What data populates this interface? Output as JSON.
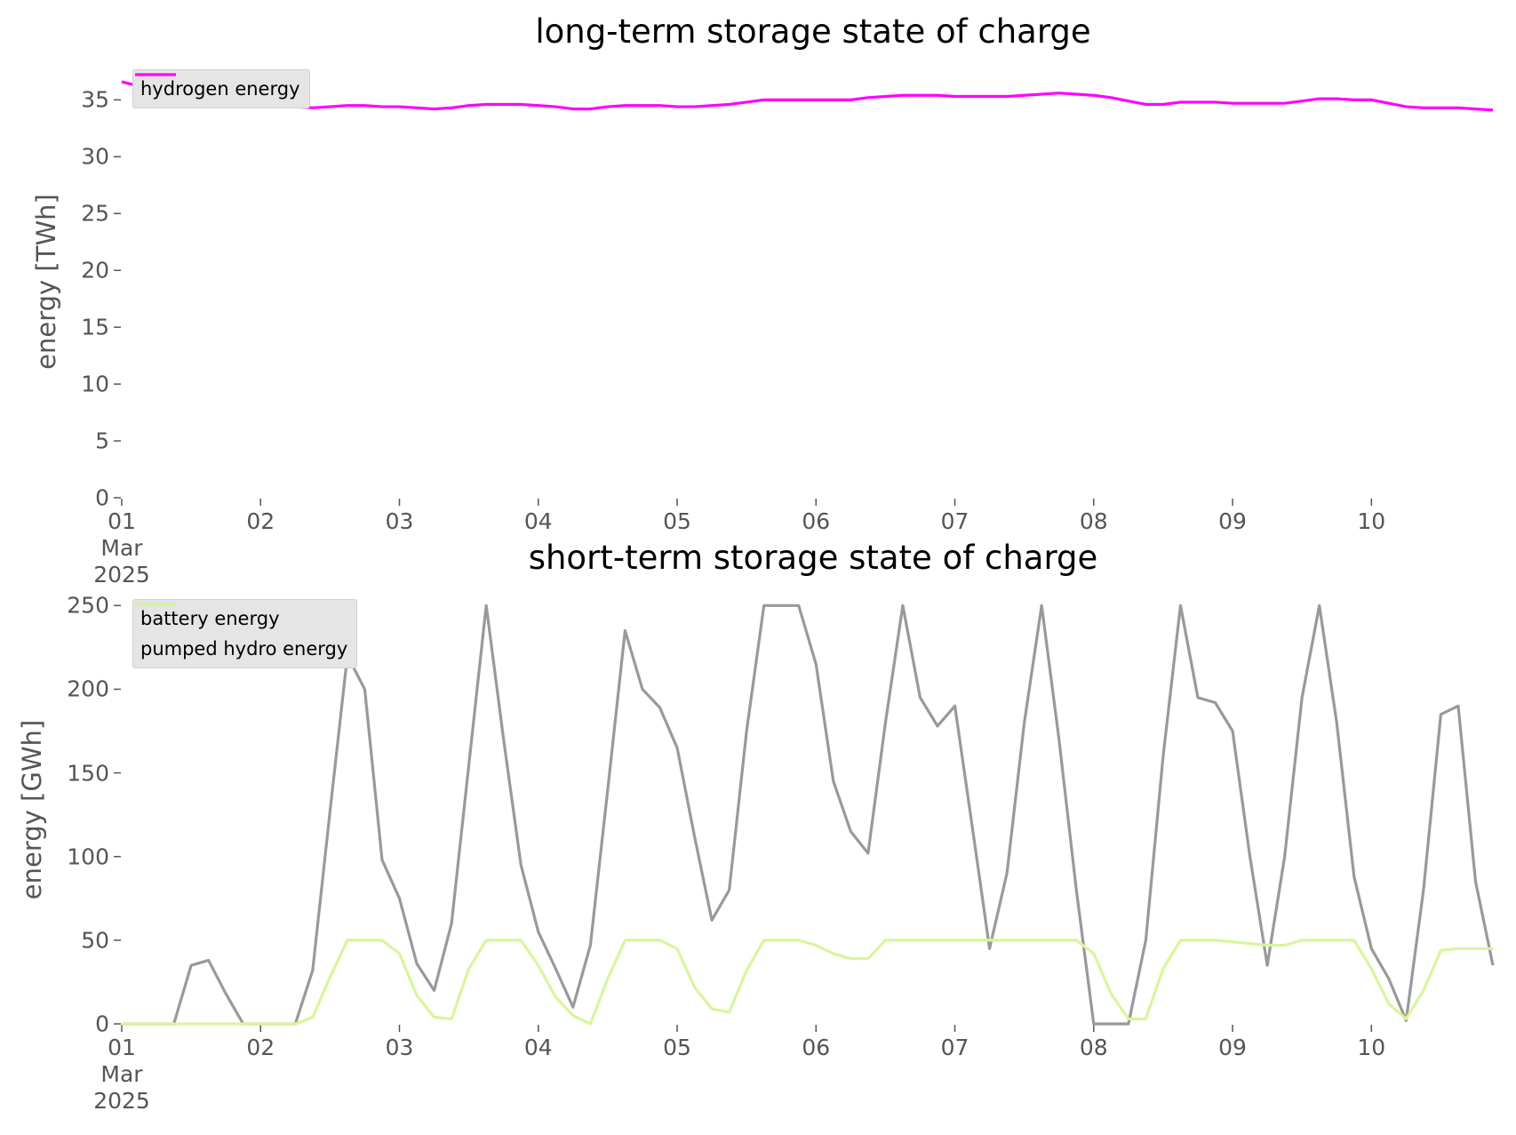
{
  "chart_data": [
    {
      "type": "line",
      "title": "long-term storage state of charge",
      "ylabel": "energy [TWh]",
      "legend": "upper left",
      "x": [
        1,
        1.125,
        1.25,
        1.375,
        1.5,
        1.625,
        1.75,
        1.875,
        2,
        2.125,
        2.25,
        2.375,
        2.5,
        2.625,
        2.75,
        2.875,
        3,
        3.125,
        3.25,
        3.375,
        3.5,
        3.625,
        3.75,
        3.875,
        4,
        4.125,
        4.25,
        4.375,
        4.5,
        4.625,
        4.75,
        4.875,
        5,
        5.125,
        5.25,
        5.375,
        5.5,
        5.625,
        5.75,
        5.875,
        6,
        6.125,
        6.25,
        6.375,
        6.5,
        6.625,
        6.75,
        6.875,
        7,
        7.125,
        7.25,
        7.375,
        7.5,
        7.625,
        7.75,
        7.875,
        8,
        8.125,
        8.25,
        8.375,
        8.5,
        8.625,
        8.75,
        8.875,
        9,
        9.125,
        9.25,
        9.375,
        9.5,
        9.625,
        9.75,
        9.875,
        10,
        10.125,
        10.25,
        10.375,
        10.5,
        10.625,
        10.75,
        10.875
      ],
      "xlim": [
        1,
        10.958
      ],
      "xticks": [
        {
          "value": 1,
          "label": "01\nMar\n2025"
        },
        {
          "value": 2,
          "label": "02"
        },
        {
          "value": 3,
          "label": "03"
        },
        {
          "value": 4,
          "label": "04"
        },
        {
          "value": 5,
          "label": "05"
        },
        {
          "value": 6,
          "label": "06"
        },
        {
          "value": 7,
          "label": "07"
        },
        {
          "value": 8,
          "label": "08"
        },
        {
          "value": 9,
          "label": "09"
        },
        {
          "value": 10,
          "label": "10"
        }
      ],
      "ylim": [
        0,
        38
      ],
      "yticks": [
        0,
        5,
        10,
        15,
        20,
        25,
        30,
        35
      ],
      "series": [
        {
          "name": "hydrogen energy",
          "color": "#ff00ff",
          "values": [
            36.6,
            36.2,
            35.8,
            35.6,
            35.5,
            35.4,
            35.2,
            35.0,
            34.8,
            34.6,
            34.4,
            34.3,
            34.4,
            34.5,
            34.5,
            34.4,
            34.4,
            34.3,
            34.2,
            34.3,
            34.5,
            34.6,
            34.6,
            34.6,
            34.5,
            34.4,
            34.2,
            34.2,
            34.4,
            34.5,
            34.5,
            34.5,
            34.4,
            34.4,
            34.5,
            34.6,
            34.8,
            35.0,
            35.0,
            35.0,
            35.0,
            35.0,
            35.0,
            35.2,
            35.3,
            35.4,
            35.4,
            35.4,
            35.3,
            35.3,
            35.3,
            35.3,
            35.4,
            35.5,
            35.6,
            35.5,
            35.4,
            35.2,
            34.9,
            34.6,
            34.6,
            34.8,
            34.8,
            34.8,
            34.7,
            34.7,
            34.7,
            34.7,
            34.9,
            35.1,
            35.1,
            35.0,
            35.0,
            34.7,
            34.4,
            34.3,
            34.3,
            34.3,
            34.2,
            34.1
          ]
        }
      ]
    },
    {
      "type": "line",
      "title": "short-term storage state of charge",
      "ylabel": "energy [GWh]",
      "legend": "upper left",
      "x": [
        1,
        1.125,
        1.25,
        1.375,
        1.5,
        1.625,
        1.75,
        1.875,
        2,
        2.125,
        2.25,
        2.375,
        2.5,
        2.625,
        2.75,
        2.875,
        3,
        3.125,
        3.25,
        3.375,
        3.5,
        3.625,
        3.75,
        3.875,
        4,
        4.125,
        4.25,
        4.375,
        4.5,
        4.625,
        4.75,
        4.875,
        5,
        5.125,
        5.25,
        5.375,
        5.5,
        5.625,
        5.75,
        5.875,
        6,
        6.125,
        6.25,
        6.375,
        6.5,
        6.625,
        6.75,
        6.875,
        7,
        7.125,
        7.25,
        7.375,
        7.5,
        7.625,
        7.75,
        7.875,
        8,
        8.125,
        8.25,
        8.375,
        8.5,
        8.625,
        8.75,
        8.875,
        9,
        9.125,
        9.25,
        9.375,
        9.5,
        9.625,
        9.75,
        9.875,
        10,
        10.125,
        10.25,
        10.375,
        10.5,
        10.625,
        10.75,
        10.875
      ],
      "xlim": [
        1,
        10.958
      ],
      "xticks": [
        {
          "value": 1,
          "label": "01\nMar\n2025"
        },
        {
          "value": 2,
          "label": "02"
        },
        {
          "value": 3,
          "label": "03"
        },
        {
          "value": 4,
          "label": "04"
        },
        {
          "value": 5,
          "label": "05"
        },
        {
          "value": 6,
          "label": "06"
        },
        {
          "value": 7,
          "label": "07"
        },
        {
          "value": 8,
          "label": "08"
        },
        {
          "value": 9,
          "label": "09"
        },
        {
          "value": 10,
          "label": "10"
        }
      ],
      "ylim": [
        0,
        256
      ],
      "yticks": [
        0,
        50,
        100,
        150,
        200,
        250
      ],
      "series": [
        {
          "name": "battery energy",
          "color": "#999999",
          "values": [
            0,
            0,
            0,
            0,
            35,
            38,
            18,
            0,
            0,
            0,
            0,
            32,
            127,
            220,
            200,
            98,
            75,
            36,
            20,
            60,
            155,
            250,
            170,
            95,
            55,
            33,
            10,
            47,
            140,
            235,
            200,
            189,
            165,
            112,
            62,
            80,
            175,
            250,
            250,
            250,
            215,
            145,
            115,
            102,
            180,
            250,
            195,
            178,
            190,
            118,
            45,
            90,
            180,
            250,
            170,
            80,
            0,
            0,
            0,
            50,
            160,
            250,
            195,
            192,
            175,
            100,
            35,
            100,
            195,
            250,
            180,
            88,
            45,
            27,
            2,
            80,
            185,
            190,
            85,
            35
          ]
        },
        {
          "name": "pumped hydro energy",
          "color": "#d8f59c",
          "values": [
            0,
            0,
            0,
            0,
            0,
            0,
            0,
            0,
            0,
            0,
            0,
            4,
            28,
            50,
            50,
            50,
            42,
            17,
            4,
            3,
            33,
            50,
            50,
            50,
            35,
            16,
            5,
            0,
            27,
            50,
            50,
            50,
            45,
            22,
            9,
            7,
            32,
            50,
            50,
            50,
            47,
            42,
            39,
            39,
            50,
            50,
            50,
            50,
            50,
            50,
            50,
            50,
            50,
            50,
            50,
            50,
            42,
            18,
            3,
            3,
            33,
            50,
            50,
            50,
            49,
            48,
            47,
            47,
            50,
            50,
            50,
            50,
            33,
            12,
            3,
            20,
            44,
            45,
            45,
            45
          ]
        }
      ]
    }
  ]
}
